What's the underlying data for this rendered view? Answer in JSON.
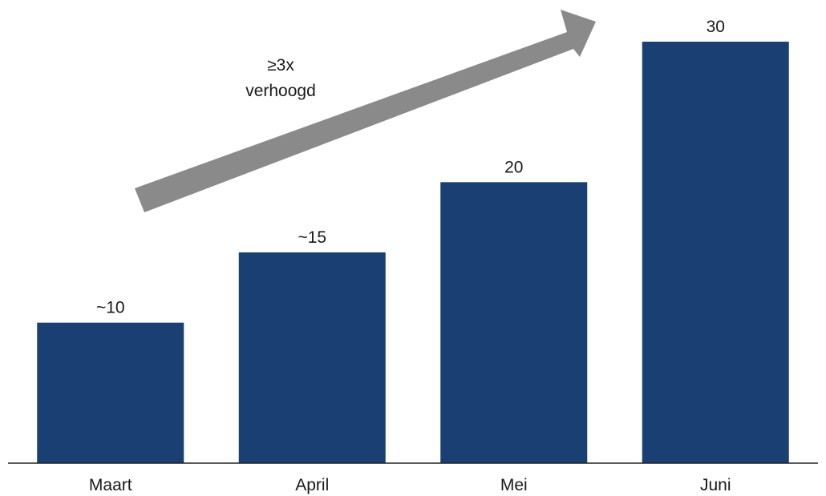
{
  "chart_data": {
    "type": "bar",
    "categories": [
      "Maart",
      "April",
      "Mei",
      "Juni"
    ],
    "values": [
      10,
      15,
      20,
      30
    ],
    "value_labels": [
      "~10",
      "~15",
      "20",
      "30"
    ],
    "ylim": [
      0,
      30
    ],
    "title": "",
    "xlabel": "",
    "ylabel": "",
    "grid": false,
    "legend": "none",
    "bar_color": "#1a3f73",
    "annotation": {
      "lines": [
        "≥3x",
        "verhoogd"
      ],
      "arrow_color": "#8a8a8a",
      "direction": "up-right"
    }
  }
}
